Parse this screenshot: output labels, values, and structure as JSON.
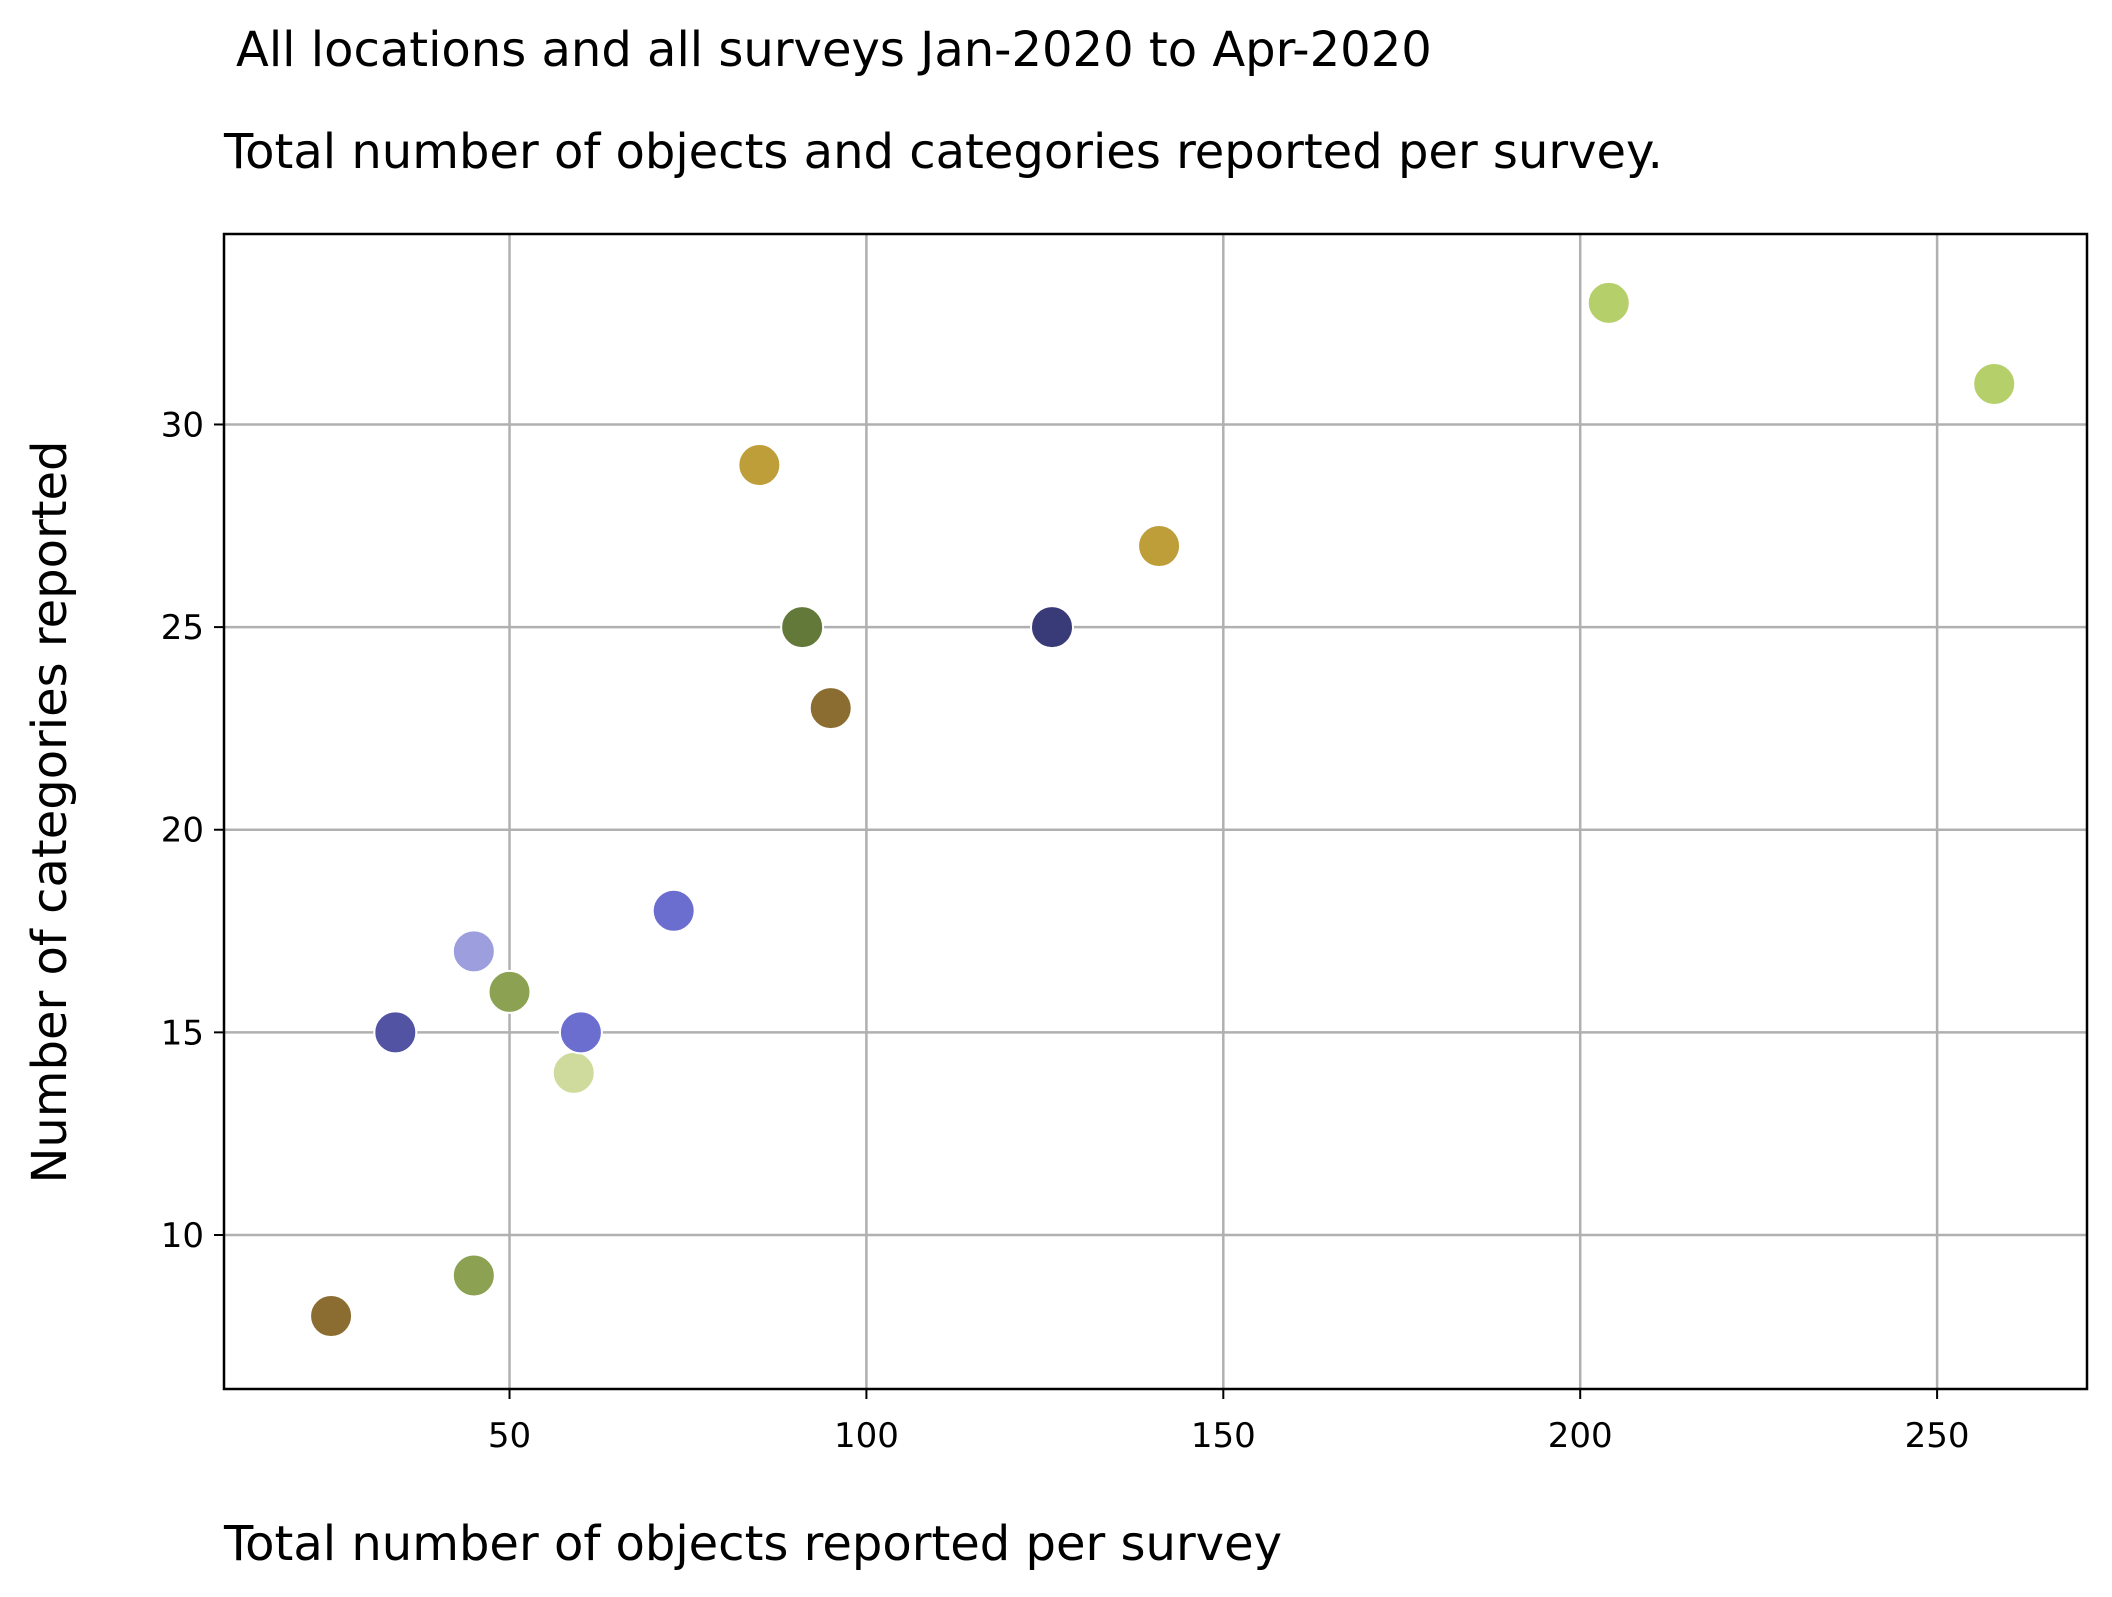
{
  "chart_data": {
    "type": "scatter",
    "title": "All locations and all surveys Jan-2020 to Apr-2020",
    "subtitle": "Total number of objects and categories reported per survey.",
    "xlabel": "Total number of objects reported per survey",
    "ylabel": "Number of categories reported",
    "xlim": [
      10,
      271
    ],
    "ylim": [
      6.2,
      34.7
    ],
    "xticks": [
      50,
      100,
      150,
      200,
      250
    ],
    "yticks": [
      10,
      15,
      20,
      25,
      30
    ],
    "grid": true,
    "legend": "none",
    "points": [
      {
        "x": 25,
        "y": 8,
        "color": "#8c6d31"
      },
      {
        "x": 45,
        "y": 9,
        "color": "#8ca252"
      },
      {
        "x": 34,
        "y": 15,
        "color": "#5254a3"
      },
      {
        "x": 45,
        "y": 17,
        "color": "#9c9ede"
      },
      {
        "x": 50,
        "y": 16,
        "color": "#8ca252"
      },
      {
        "x": 59,
        "y": 14,
        "color": "#cedb9c"
      },
      {
        "x": 60,
        "y": 15,
        "color": "#6b6ecf"
      },
      {
        "x": 73,
        "y": 18,
        "color": "#6b6ecf"
      },
      {
        "x": 85,
        "y": 29,
        "color": "#bd9e39"
      },
      {
        "x": 91,
        "y": 25,
        "color": "#637939"
      },
      {
        "x": 95,
        "y": 23,
        "color": "#8c6d31"
      },
      {
        "x": 126,
        "y": 25,
        "color": "#393b79"
      },
      {
        "x": 141,
        "y": 27,
        "color": "#bd9e39"
      },
      {
        "x": 204,
        "y": 33,
        "color": "#b5cf6b"
      },
      {
        "x": 258,
        "y": 31,
        "color": "#b5cf6b"
      }
    ]
  }
}
